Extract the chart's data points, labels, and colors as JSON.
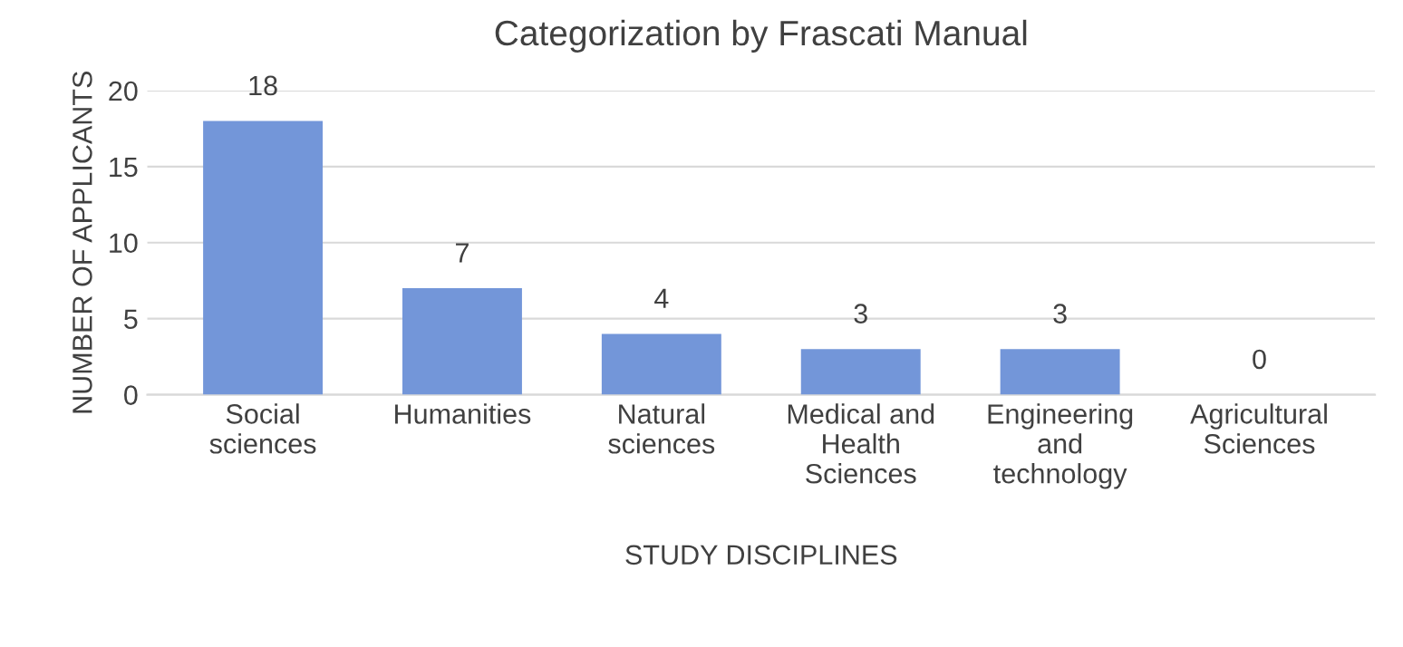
{
  "chart_data": {
    "type": "bar",
    "title": "Categorization by Frascati Manual",
    "categories": [
      "Social sciences",
      "Humanities",
      "Natural sciences",
      "Medical and Health Sciences",
      "Engineering and technology",
      "Agricultural Sciences"
    ],
    "values": [
      18,
      7,
      4,
      3,
      3,
      0
    ],
    "color": "#7396d9",
    "xlabel": "STUDY DISCIPLINES",
    "ylabel": "NUMBER OF APPLICANTS",
    "ylim": [
      0,
      20
    ],
    "yticks": [
      0,
      5,
      10,
      15,
      20
    ],
    "grid": "y",
    "data_labels": true
  }
}
